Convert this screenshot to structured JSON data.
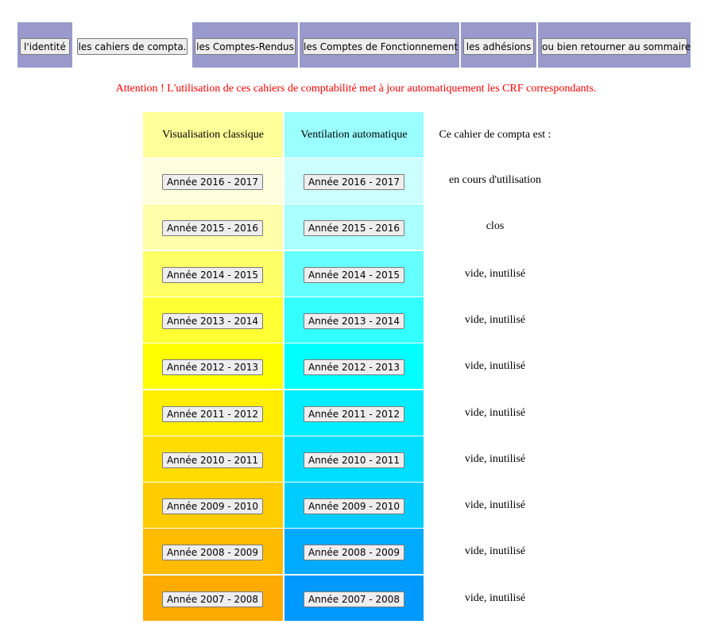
{
  "nav": {
    "identite": "l'identité",
    "cahiers": "les cahiers de compta.",
    "comptes_rendus": "les Comptes-Rendus",
    "comptes_fonctionnement": "les Comptes de Fonctionnement",
    "adhesions": "les adhésions",
    "sommaire": "ou bien retourner au sommaire"
  },
  "attention": "Attention ! L'utilisation de ces cahiers de comptabilité met à jour automatiquement les CRF correspondants.",
  "headers": {
    "classique": "Visualisation classique",
    "ventilation": "Ventilation automatique",
    "statut": "Ce cahier de compta est :"
  },
  "years": [
    {
      "label": "Année 2016 - 2017",
      "status": "en cours d'utilisation"
    },
    {
      "label": "Année 2015 - 2016",
      "status": "clos"
    },
    {
      "label": "Année 2014 - 2015",
      "status": "vide, inutilisé"
    },
    {
      "label": "Année 2013 - 2014",
      "status": "vide, inutilisé"
    },
    {
      "label": "Année 2012 - 2013",
      "status": "vide, inutilisé"
    },
    {
      "label": "Année 2011 - 2012",
      "status": "vide, inutilisé"
    },
    {
      "label": "Année 2010 - 2011",
      "status": "vide, inutilisé"
    },
    {
      "label": "Année 2009 - 2010",
      "status": "vide, inutilisé"
    },
    {
      "label": "Année 2008 - 2009",
      "status": "vide, inutilisé"
    },
    {
      "label": "Année 2007 - 2008",
      "status": "vide, inutilisé"
    }
  ],
  "colors": {
    "nav_background": "#9999cc",
    "attention_text": "#ff0000",
    "header_classique": "#ffff99",
    "header_ventilation": "#99ffff",
    "classique_rows": [
      "#ffffdd",
      "#ffffaa",
      "#ffff66",
      "#ffff33",
      "#ffff00",
      "#ffee00",
      "#ffdd00",
      "#ffcc00",
      "#ffbb00",
      "#ffaa00"
    ],
    "ventilation_rows": [
      "#ccffff",
      "#aaffff",
      "#66ffff",
      "#33ffff",
      "#00ffff",
      "#00eeff",
      "#00ddff",
      "#00ccff",
      "#00aaff",
      "#0099ff"
    ]
  }
}
